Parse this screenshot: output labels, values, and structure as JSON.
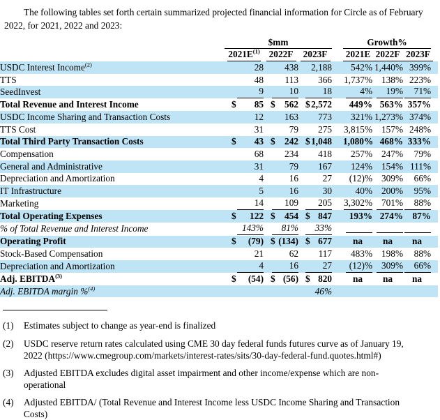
{
  "intro": "The following tables set forth certain summarized projected financial information for Circle as of February 2022, for 2021, 2022 and 2023:",
  "colors": {
    "row_highlight": "#BEE4F5"
  },
  "table": {
    "group_headers": [
      "$mm",
      "Growth%"
    ],
    "years": [
      "2021E",
      "2022F",
      "2023F",
      "2021E",
      "2022F",
      "2023F"
    ],
    "year1_sup": "(1)",
    "rows": [
      {
        "label": "USDC Interest Income",
        "sup": "(2)",
        "shaded": true,
        "bold": false,
        "italic": false,
        "underline": false,
        "dollar": false,
        "values": [
          "28",
          "438",
          "2,188",
          "542%",
          "1,440%",
          "399%"
        ]
      },
      {
        "label": "TTS",
        "sup": "",
        "shaded": false,
        "bold": false,
        "italic": false,
        "underline": false,
        "dollar": false,
        "values": [
          "48",
          "113",
          "366",
          "1,737%",
          "138%",
          "223%"
        ]
      },
      {
        "label": "SeedInvest",
        "sup": "",
        "shaded": true,
        "bold": false,
        "italic": false,
        "underline": true,
        "dollar": false,
        "values": [
          "9",
          "10",
          "18",
          "4%",
          "19%",
          "71%"
        ]
      },
      {
        "label": "Total Revenue and Interest Income",
        "sup": "",
        "shaded": false,
        "bold": true,
        "italic": false,
        "underline": false,
        "dollar": true,
        "values": [
          "85",
          "562",
          "2,572",
          "449%",
          "563%",
          "357%"
        ]
      },
      {
        "label": "USDC Income Sharing and Transaction Costs",
        "sup": "",
        "shaded": true,
        "bold": false,
        "italic": false,
        "underline": false,
        "dollar": false,
        "values": [
          "12",
          "163",
          "773",
          "321%",
          "1,273%",
          "374%"
        ]
      },
      {
        "label": "TTS Cost",
        "sup": "",
        "shaded": false,
        "bold": false,
        "italic": false,
        "underline": false,
        "dollar": false,
        "values": [
          "31",
          "79",
          "275",
          "3,815%",
          "157%",
          "248%"
        ]
      },
      {
        "label": "Total Third Party Transaction Costs",
        "sup": "",
        "shaded": true,
        "bold": true,
        "italic": false,
        "underline": false,
        "dollar": true,
        "values": [
          "43",
          "242",
          "1,048",
          "1,080%",
          "468%",
          "333%"
        ]
      },
      {
        "label": "Compensation",
        "sup": "",
        "shaded": false,
        "bold": false,
        "italic": false,
        "underline": false,
        "dollar": false,
        "values": [
          "68",
          "234",
          "418",
          "257%",
          "247%",
          "79%"
        ]
      },
      {
        "label": "General and Administrative",
        "sup": "",
        "shaded": true,
        "bold": false,
        "italic": false,
        "underline": false,
        "dollar": false,
        "values": [
          "31",
          "79",
          "167",
          "124%",
          "154%",
          "111%"
        ]
      },
      {
        "label": "Depreciation and Amortization",
        "sup": "",
        "shaded": false,
        "bold": false,
        "italic": false,
        "underline": false,
        "dollar": false,
        "values": [
          "4",
          "16",
          "27",
          "(12)%",
          "309%",
          "66%"
        ]
      },
      {
        "label": "IT Infrastructure",
        "sup": "",
        "shaded": true,
        "bold": false,
        "italic": false,
        "underline": false,
        "dollar": false,
        "values": [
          "5",
          "16",
          "30",
          "40%",
          "200%",
          "95%"
        ]
      },
      {
        "label": "Marketing",
        "sup": "",
        "shaded": false,
        "bold": false,
        "italic": false,
        "underline": true,
        "dollar": false,
        "values": [
          "14",
          "109",
          "205",
          "3,302%",
          "701%",
          "88%"
        ]
      },
      {
        "label": "Total Operating Expenses",
        "sup": "",
        "shaded": true,
        "bold": true,
        "italic": false,
        "underline": false,
        "dollar": true,
        "values": [
          "122",
          "454",
          "847",
          "193%",
          "274%",
          "87%"
        ]
      },
      {
        "label": "% of Total Revenue and Interest Income",
        "sup": "",
        "shaded": false,
        "bold": false,
        "italic": true,
        "underline": true,
        "dollar": false,
        "values": [
          "143%",
          "81%",
          "33%",
          "",
          "",
          ""
        ]
      },
      {
        "label": "Operating Profit",
        "sup": "",
        "shaded": true,
        "bold": true,
        "italic": false,
        "underline": false,
        "dollar": true,
        "values": [
          "(79)",
          "(134)",
          "677",
          "na",
          "na",
          "na"
        ]
      },
      {
        "label": "Stock-Based Compensation",
        "sup": "",
        "shaded": false,
        "bold": false,
        "italic": false,
        "underline": false,
        "dollar": false,
        "values": [
          "21",
          "62",
          "117",
          "483%",
          "198%",
          "88%"
        ]
      },
      {
        "label": "Depreciation and Amortization",
        "sup": "",
        "shaded": true,
        "bold": false,
        "italic": false,
        "underline": true,
        "dollar": false,
        "values": [
          "4",
          "16",
          "27",
          "(12)%",
          "309%",
          "66%"
        ]
      },
      {
        "label": "Adj. EBITDA",
        "sup": "(3)",
        "shaded": false,
        "bold": true,
        "italic": false,
        "underline": false,
        "dollar": true,
        "values": [
          "(54)",
          "(56)",
          "820",
          "na",
          "na",
          "na"
        ]
      },
      {
        "label": "Adj. EBITDA margin %",
        "sup": "(4)",
        "shaded": true,
        "bold": false,
        "italic": true,
        "underline": false,
        "dollar": false,
        "values": [
          "",
          "",
          "46%",
          "",
          "",
          ""
        ]
      }
    ]
  },
  "footnotes": [
    {
      "marker": "(1)",
      "text": "Estimates subject to change as year-end is finalized"
    },
    {
      "marker": "(2)",
      "text": "USDC reserve return rates calculated using CME 30 day federal funds futures curve as of January 19, 2022 (https://www.cmegroup.com/markets/interest-rates/sits/30-day-federal-fund.quotes.html#)"
    },
    {
      "marker": "(3)",
      "text": "Adjusted EBITDA excludes digital asset impairment and other income/expense which are non-operational"
    },
    {
      "marker": "(4)",
      "text": "Adjusted EBITDA/ (Total Revenue and Interest Income less USDC Income Sharing and Transaction Costs)"
    }
  ]
}
